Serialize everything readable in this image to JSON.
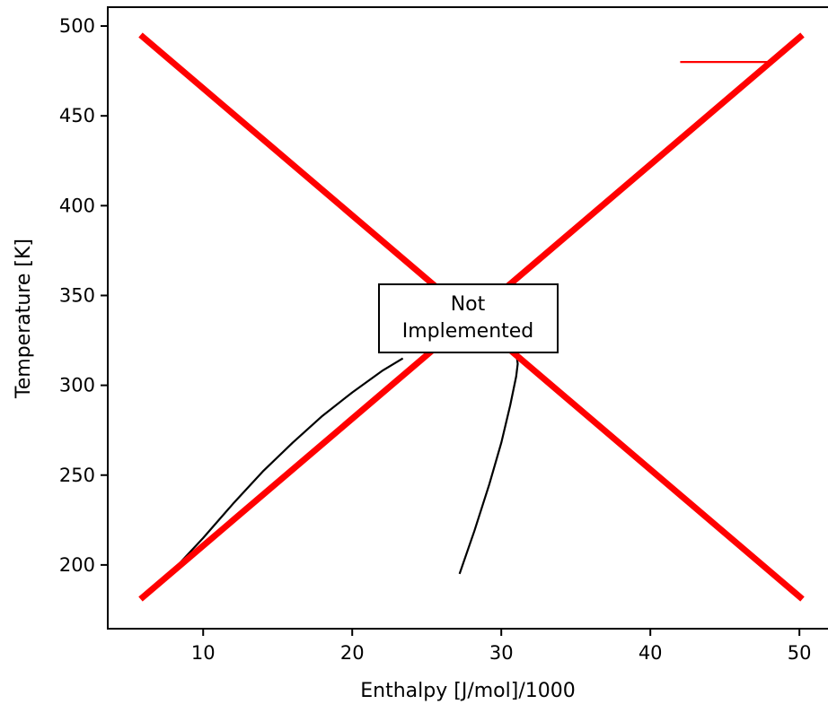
{
  "chart_data": {
    "type": "line",
    "title": "",
    "xlabel": "Enthalpy [J/mol]/1000",
    "ylabel": "Temperature [K]",
    "xlim": [
      3.6,
      52.4
    ],
    "ylim": [
      164.5,
      510.5
    ],
    "xticks": [
      10,
      20,
      30,
      40,
      50
    ],
    "yticks": [
      200,
      250,
      300,
      350,
      400,
      450,
      500
    ],
    "grid": false,
    "legend": "none",
    "series": [
      {
        "role": "black-curve-left",
        "color": "#000000",
        "x": [
          8.2,
          10,
          12,
          14,
          16,
          18,
          20,
          22,
          23.4
        ],
        "y": [
          199,
          215,
          234,
          252,
          268,
          283,
          296,
          308,
          315
        ]
      },
      {
        "role": "black-curve-right",
        "color": "#000000",
        "x": [
          27.2,
          28.2,
          29.2,
          30,
          30.6,
          31.0,
          31.1,
          31.0,
          30.7
        ],
        "y": [
          195,
          219,
          245,
          268,
          289,
          305,
          312,
          318,
          322
        ]
      },
      {
        "role": "red-line-short",
        "color": "#ff0000",
        "x": [
          42,
          48.3
        ],
        "y": [
          480,
          480
        ]
      },
      {
        "role": "not-implemented-cross-rising",
        "color": "#ff0000",
        "x": [
          5.8,
          50.2
        ],
        "y": [
          181,
          495
        ]
      },
      {
        "role": "not-implemented-cross-falling",
        "color": "#ff0000",
        "x": [
          5.8,
          50.2
        ],
        "y": [
          495,
          181
        ]
      }
    ],
    "annotation": {
      "lines": [
        "Not",
        "Implemented"
      ],
      "x": 28.1,
      "y": 338
    }
  }
}
